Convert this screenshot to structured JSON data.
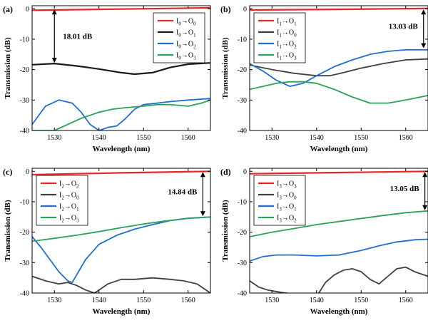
{
  "colors": {
    "red": "#e8262a",
    "black": "#1a1a1a",
    "gray": "#404040",
    "blue": "#1f6fd0",
    "green": "#2aa35a"
  },
  "chart_data": [
    {
      "type": "line",
      "panel_label": "(a)",
      "xlabel": "Wavelength (nm)",
      "ylabel": "Transmission (dB)",
      "xlim": [
        1525,
        1565
      ],
      "ylim": [
        -40,
        1
      ],
      "xticks": [
        1530,
        1540,
        1550,
        1560
      ],
      "xtick_labels": [
        "1530",
        "1540",
        "1550",
        "1560"
      ],
      "yticks": [
        0,
        -10,
        -20,
        -30,
        -40
      ],
      "ytick_labels": [
        "0",
        "-10",
        "-20",
        "-30",
        "-40"
      ],
      "annotation": {
        "text": "18.01 dB",
        "x": 1530,
        "y_top": 0,
        "y_bottom": -18
      },
      "legend": {
        "position": "top-right",
        "entries": [
          {
            "label": "I0→O0",
            "sub_in": "0",
            "sub_out": "0",
            "color": "#e8262a"
          },
          {
            "label": "I0→O1",
            "sub_in": "0",
            "sub_out": "1",
            "color": "#1a1a1a"
          },
          {
            "label": "I0→O2",
            "sub_in": "0",
            "sub_out": "2",
            "color": "#1f6fd0"
          },
          {
            "label": "I0→O3",
            "sub_in": "0",
            "sub_out": "3",
            "color": "#2aa35a"
          }
        ]
      },
      "series": [
        {
          "name": "I0→O0",
          "color": "#e8262a",
          "width": 2.2,
          "x": [
            1525,
            1545,
            1565
          ],
          "y": [
            -0.5,
            -0.1,
            0.3
          ]
        },
        {
          "name": "I0→O1",
          "color": "#1a1a1a",
          "width": 2.2,
          "x": [
            1525,
            1530,
            1535,
            1540,
            1545,
            1548,
            1552,
            1556,
            1560,
            1565
          ],
          "y": [
            -18.4,
            -18.0,
            -18.8,
            -19.8,
            -21.0,
            -21.5,
            -21.0,
            -19.3,
            -18.2,
            -17.8
          ]
        },
        {
          "name": "I0→O2",
          "color": "#1f6fd0",
          "width": 1.8,
          "x": [
            1525,
            1528,
            1531,
            1534,
            1536,
            1538,
            1540,
            1542,
            1544,
            1546,
            1548,
            1550,
            1553,
            1556,
            1560,
            1565
          ],
          "y": [
            -38,
            -32,
            -30,
            -31,
            -34,
            -38,
            -40,
            -39,
            -38.5,
            -36,
            -33,
            -31.5,
            -31,
            -30.5,
            -30,
            -29.5
          ]
        },
        {
          "name": "I0→O3",
          "color": "#2aa35a",
          "width": 1.8,
          "x": [
            1525,
            1528,
            1530,
            1533,
            1536,
            1540,
            1543,
            1546,
            1550,
            1553,
            1556,
            1560,
            1563,
            1565
          ],
          "y": [
            -40,
            -40,
            -40,
            -38,
            -36,
            -34,
            -33,
            -32.5,
            -32,
            -31.5,
            -31.5,
            -32,
            -31,
            -30
          ]
        }
      ]
    },
    {
      "type": "line",
      "panel_label": "(b)",
      "xlabel": "Wavelength (nm)",
      "ylabel": "Transmission (dB)",
      "xlim": [
        1525,
        1565
      ],
      "ylim": [
        -40,
        1
      ],
      "xticks": [
        1530,
        1540,
        1550,
        1560
      ],
      "xtick_labels": [
        "1530",
        "1540",
        "1550",
        "1560"
      ],
      "yticks": [
        0,
        -10,
        -20,
        -30,
        -40
      ],
      "ytick_labels": [
        "0",
        "-10",
        "-20",
        "-30",
        "-40"
      ],
      "annotation": {
        "text": "13.03 dB",
        "x": 1564,
        "y_top": 0,
        "y_bottom": -13.2
      },
      "legend": {
        "position": "top-left",
        "entries": [
          {
            "label": "I1→O1",
            "sub_in": "1",
            "sub_out": "1",
            "color": "#e8262a"
          },
          {
            "label": "I1→O0",
            "sub_in": "1",
            "sub_out": "0",
            "color": "#404040"
          },
          {
            "label": "I1→O2",
            "sub_in": "1",
            "sub_out": "2",
            "color": "#1f6fd0"
          },
          {
            "label": "I1→O3",
            "sub_in": "1",
            "sub_out": "3",
            "color": "#2aa35a"
          }
        ]
      },
      "series": [
        {
          "name": "I1→O1",
          "color": "#e8262a",
          "width": 2.2,
          "x": [
            1525,
            1545,
            1565
          ],
          "y": [
            -0.4,
            -0.2,
            0.1
          ]
        },
        {
          "name": "I1→O0",
          "color": "#404040",
          "width": 1.8,
          "x": [
            1525,
            1530,
            1535,
            1540,
            1543,
            1546,
            1550,
            1555,
            1560,
            1565
          ],
          "y": [
            -18.5,
            -20.0,
            -21.2,
            -22.0,
            -22.0,
            -21.0,
            -19.5,
            -18.0,
            -16.8,
            -16.5
          ]
        },
        {
          "name": "I1→O2",
          "color": "#1f6fd0",
          "width": 1.8,
          "x": [
            1525,
            1528,
            1531,
            1534,
            1537,
            1540,
            1544,
            1548,
            1552,
            1556,
            1560,
            1565
          ],
          "y": [
            -18,
            -20.5,
            -23.5,
            -25.5,
            -24.5,
            -22,
            -19,
            -16.8,
            -15,
            -14,
            -13.5,
            -13.5
          ]
        },
        {
          "name": "I1→O3",
          "color": "#2aa35a",
          "width": 1.8,
          "x": [
            1525,
            1528,
            1531,
            1534,
            1537,
            1540,
            1544,
            1548,
            1552,
            1556,
            1560,
            1565
          ],
          "y": [
            -26.5,
            -25.5,
            -24.5,
            -24,
            -24,
            -24.5,
            -26.5,
            -29,
            -31,
            -31,
            -30,
            -28.5
          ]
        }
      ]
    },
    {
      "type": "line",
      "panel_label": "(c)",
      "xlabel": "Wavelength (nm)",
      "ylabel": "Transmission (dB)",
      "xlim": [
        1525,
        1565
      ],
      "ylim": [
        -40,
        1
      ],
      "xticks": [
        1530,
        1540,
        1550,
        1560
      ],
      "xtick_labels": [
        "1530",
        "1540",
        "1550",
        "1560"
      ],
      "yticks": [
        0,
        -10,
        -20,
        -30,
        -40
      ],
      "ytick_labels": [
        "0",
        "-10",
        "-20",
        "-30",
        "-40"
      ],
      "annotation": {
        "text": "14.84 dB",
        "x": 1563.3,
        "y_top": 0,
        "y_bottom": -15
      },
      "legend": {
        "position": "top-left",
        "entries": [
          {
            "label": "I2→O2",
            "sub_in": "2",
            "sub_out": "2",
            "color": "#e8262a"
          },
          {
            "label": "I2→O0",
            "sub_in": "2",
            "sub_out": "0",
            "color": "#404040"
          },
          {
            "label": "I2→O1",
            "sub_in": "2",
            "sub_out": "1",
            "color": "#1f6fd0"
          },
          {
            "label": "I2→O3",
            "sub_in": "2",
            "sub_out": "3",
            "color": "#2aa35a"
          }
        ]
      },
      "series": [
        {
          "name": "I2→O2",
          "color": "#e8262a",
          "width": 2.2,
          "x": [
            1525,
            1545,
            1565
          ],
          "y": [
            -1.1,
            -0.5,
            0.0
          ]
        },
        {
          "name": "I2→O0",
          "color": "#404040",
          "width": 1.8,
          "x": [
            1525,
            1528,
            1531,
            1533,
            1535,
            1537,
            1539,
            1542,
            1545,
            1548,
            1552,
            1556,
            1559,
            1562,
            1565
          ],
          "y": [
            -34.5,
            -36,
            -37,
            -36.5,
            -37.5,
            -39,
            -40,
            -37,
            -35.5,
            -35.5,
            -35,
            -35.5,
            -36,
            -37,
            -40
          ]
        },
        {
          "name": "I2→O1",
          "color": "#1f6fd0",
          "width": 1.8,
          "x": [
            1525,
            1527,
            1529,
            1531,
            1533,
            1534,
            1535,
            1537,
            1540,
            1544,
            1548,
            1552,
            1556,
            1560,
            1565
          ],
          "y": [
            -21.5,
            -25,
            -29,
            -33,
            -36,
            -36.5,
            -34,
            -29,
            -24,
            -21,
            -19,
            -17.5,
            -16.2,
            -15.4,
            -15
          ]
        },
        {
          "name": "I2→O3",
          "color": "#2aa35a",
          "width": 1.8,
          "x": [
            1525,
            1530,
            1535,
            1540,
            1545,
            1550,
            1555,
            1560,
            1565
          ],
          "y": [
            -23,
            -22,
            -21,
            -19.8,
            -18.5,
            -17.3,
            -16.3,
            -15.5,
            -15
          ]
        }
      ]
    },
    {
      "type": "line",
      "panel_label": "(d)",
      "xlabel": "Wavelength (nm)",
      "ylabel": "Transmission (dB)",
      "xlim": [
        1525,
        1565
      ],
      "ylim": [
        -40,
        1
      ],
      "xticks": [
        1530,
        1540,
        1550,
        1560
      ],
      "xtick_labels": [
        "1530",
        "1540",
        "1550",
        "1560"
      ],
      "yticks": [
        0,
        -10,
        -20,
        -30,
        -40
      ],
      "ytick_labels": [
        "0",
        "-10",
        "-20",
        "-30",
        "-40"
      ],
      "annotation": {
        "text": "13.05 dB",
        "x": 1564.3,
        "y_top": 0,
        "y_bottom": -13
      },
      "legend": {
        "position": "top-left",
        "entries": [
          {
            "label": "I3→O3",
            "sub_in": "3",
            "sub_out": "3",
            "color": "#e8262a"
          },
          {
            "label": "I3→O0",
            "sub_in": "3",
            "sub_out": "0",
            "color": "#404040"
          },
          {
            "label": "I3→O1",
            "sub_in": "3",
            "sub_out": "1",
            "color": "#1f6fd0"
          },
          {
            "label": "I3→O2",
            "sub_in": "3",
            "sub_out": "2",
            "color": "#2aa35a"
          }
        ]
      },
      "series": [
        {
          "name": "I3→O3",
          "color": "#e8262a",
          "width": 2.2,
          "x": [
            1525,
            1545,
            1565
          ],
          "y": [
            -0.8,
            -0.4,
            0.0
          ]
        },
        {
          "name": "I3→O0",
          "color": "#404040",
          "width": 1.8,
          "x": [
            1525,
            1527,
            1529,
            1531,
            1533,
            1533.5
          ],
          "y": [
            -36,
            -38,
            -39,
            -39.5,
            -40,
            -40
          ],
          "x2": [
            1540.5,
            1542,
            1544,
            1546,
            1548,
            1550,
            1552,
            1554,
            1556,
            1558,
            1560,
            1562,
            1565
          ],
          "y2": [
            -40,
            -36.5,
            -34,
            -32.5,
            -32,
            -33,
            -35.5,
            -37,
            -34.5,
            -32,
            -31.5,
            -33,
            -34.5
          ]
        },
        {
          "name": "I3→O1",
          "color": "#1f6fd0",
          "width": 1.8,
          "x": [
            1525,
            1528,
            1531,
            1535,
            1540,
            1545,
            1550,
            1554,
            1558,
            1562,
            1565
          ],
          "y": [
            -29.5,
            -28,
            -27.5,
            -27.5,
            -27.8,
            -27.5,
            -26,
            -24.5,
            -23.2,
            -22.5,
            -22.3
          ]
        },
        {
          "name": "I3→O2",
          "color": "#2aa35a",
          "width": 1.8,
          "x": [
            1525,
            1530,
            1535,
            1540,
            1545,
            1550,
            1555,
            1560,
            1565
          ],
          "y": [
            -21.5,
            -20,
            -18.8,
            -17.5,
            -16.5,
            -15.5,
            -14.5,
            -13.6,
            -13
          ]
        }
      ]
    }
  ]
}
